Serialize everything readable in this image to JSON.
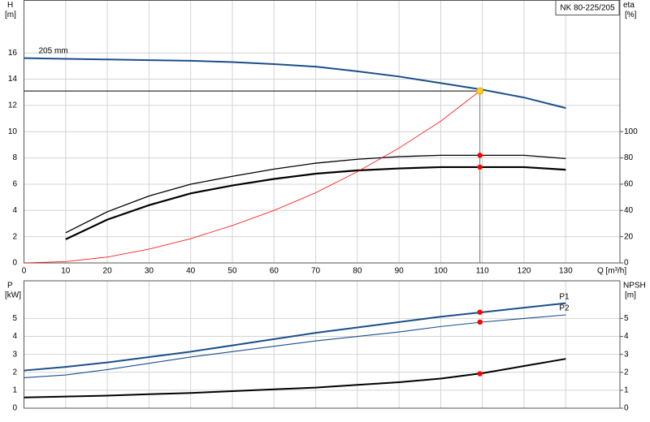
{
  "chart_data": [
    {
      "type": "line",
      "title": "NK 80-225/205",
      "ylabel": "H",
      "yunit": "[m]",
      "y2label": "eta",
      "y2unit": "[%]",
      "xlabel": "Q [m³/h]",
      "xlim": [
        0,
        143
      ],
      "ylim": [
        0,
        20
      ],
      "y2lim": [
        0,
        200
      ],
      "xticks": [
        0,
        10,
        20,
        30,
        40,
        50,
        60,
        70,
        80,
        90,
        100,
        110,
        120,
        130
      ],
      "yticks": [
        0,
        2,
        4,
        6,
        8,
        10,
        12,
        14,
        16
      ],
      "y2ticks": [
        0,
        20,
        40,
        60,
        80,
        100
      ],
      "grid": true,
      "xticklabels": true,
      "x": [
        0,
        10,
        20,
        30,
        40,
        50,
        60,
        70,
        80,
        90,
        100,
        110,
        120,
        130
      ],
      "series": [
        {
          "name": "205 mm",
          "color": "#1a4f8a",
          "width": 2,
          "values": [
            15.6,
            15.55,
            15.5,
            15.45,
            15.4,
            15.3,
            15.15,
            14.95,
            14.6,
            14.2,
            13.7,
            13.2,
            12.6,
            11.8
          ]
        },
        {
          "color": "#000000",
          "width": 1.3,
          "axis": "y2",
          "values": [
            null,
            23,
            39,
            51,
            60,
            66,
            71.5,
            76,
            79,
            81,
            82,
            82,
            82,
            79.5
          ]
        },
        {
          "color": "#000000",
          "width": 2.2,
          "axis": "y2",
          "values": [
            null,
            18,
            33,
            44,
            53,
            59,
            64,
            68,
            70.5,
            72,
            73,
            73,
            73,
            71
          ]
        },
        {
          "color": "#ff0000",
          "width": 0.8,
          "x": [
            0,
            10,
            20,
            30,
            40,
            50,
            60,
            70,
            80,
            90,
            100,
            109.4
          ],
          "values": [
            0,
            0.1,
            0.45,
            1.05,
            1.85,
            2.85,
            4.0,
            5.35,
            6.95,
            8.75,
            10.8,
            13.1
          ]
        }
      ],
      "operating_point": {
        "x": 109.4,
        "y": 13.1,
        "color": "#ffd21f"
      },
      "markers": [
        {
          "x": 109.4,
          "y": 82,
          "axis": "y2",
          "color": "#ff0000"
        },
        {
          "x": 109.4,
          "y": 73,
          "axis": "y2",
          "color": "#ff0000"
        }
      ]
    },
    {
      "type": "line",
      "ylabel": "P",
      "yunit": "[kW]",
      "y2label": "NPSH",
      "y2unit": "[m]",
      "xlim": [
        0,
        143
      ],
      "ylim": [
        0,
        7.1
      ],
      "y2lim": [
        0,
        7.1
      ],
      "xticks": [
        0,
        10,
        20,
        30,
        40,
        50,
        60,
        70,
        80,
        90,
        100,
        110,
        120,
        130
      ],
      "yticks": [
        0,
        1,
        2,
        3,
        4,
        5
      ],
      "y2ticks": [
        0,
        1,
        2,
        3,
        4,
        5
      ],
      "grid": true,
      "xticklabels": false,
      "x": [
        0,
        10,
        20,
        30,
        40,
        50,
        60,
        70,
        80,
        90,
        100,
        110,
        120,
        130
      ],
      "series": [
        {
          "name": "P1",
          "color": "#1a4f8a",
          "width": 2,
          "values": [
            2.1,
            2.3,
            2.55,
            2.85,
            3.15,
            3.5,
            3.85,
            4.2,
            4.5,
            4.8,
            5.1,
            5.35,
            5.6,
            5.85
          ]
        },
        {
          "name": "P2",
          "color": "#1a4f8a",
          "width": 1.1,
          "values": [
            1.7,
            1.85,
            2.15,
            2.5,
            2.85,
            3.15,
            3.45,
            3.75,
            4.0,
            4.25,
            4.55,
            4.8,
            5.0,
            5.2
          ]
        },
        {
          "color": "#000000",
          "width": 2,
          "axis": "y2",
          "values": [
            0.6,
            0.65,
            0.7,
            0.78,
            0.85,
            0.95,
            1.05,
            1.15,
            1.3,
            1.45,
            1.65,
            1.95,
            2.35,
            2.75
          ]
        }
      ],
      "markers": [
        {
          "x": 109.4,
          "y": 5.35,
          "color": "#ff0000"
        },
        {
          "x": 109.4,
          "y": 4.8,
          "color": "#ff0000"
        },
        {
          "x": 109.4,
          "y": 1.92,
          "axis": "y2",
          "color": "#ff0000"
        }
      ]
    }
  ]
}
